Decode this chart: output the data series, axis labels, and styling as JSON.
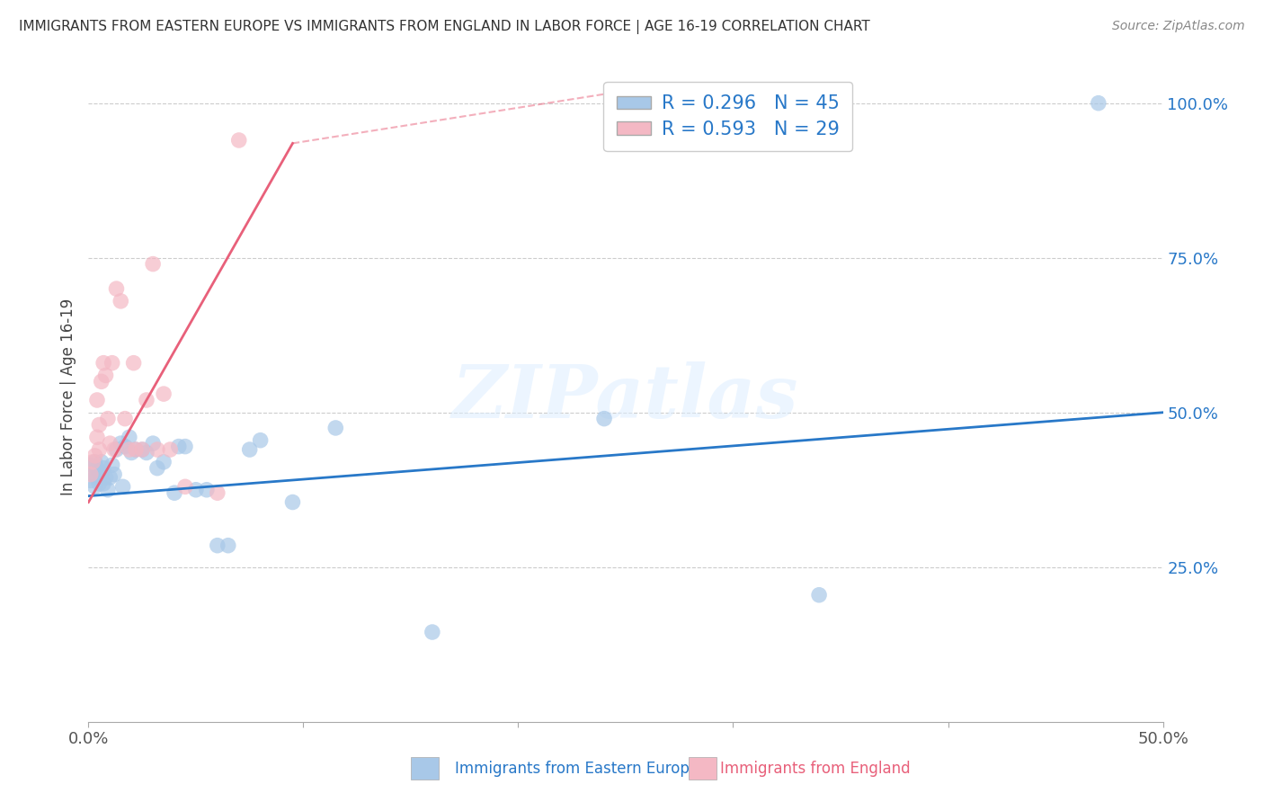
{
  "title": "IMMIGRANTS FROM EASTERN EUROPE VS IMMIGRANTS FROM ENGLAND IN LABOR FORCE | AGE 16-19 CORRELATION CHART",
  "source": "Source: ZipAtlas.com",
  "ylabel": "In Labor Force | Age 16-19",
  "xlim": [
    0.0,
    0.5
  ],
  "ylim": [
    0.0,
    1.05
  ],
  "xticks": [
    0.0,
    0.1,
    0.2,
    0.3,
    0.4,
    0.5
  ],
  "xticklabels": [
    "0.0%",
    "",
    "",
    "",
    "",
    "50.0%"
  ],
  "yticks_right": [
    0.25,
    0.5,
    0.75,
    1.0
  ],
  "yticklabels_right": [
    "25.0%",
    "50.0%",
    "75.0%",
    "100.0%"
  ],
  "r_blue": 0.296,
  "n_blue": 45,
  "r_pink": 0.593,
  "n_pink": 29,
  "blue_color": "#a8c8e8",
  "pink_color": "#f4b8c4",
  "blue_line_color": "#2878c8",
  "pink_line_color": "#e8607a",
  "legend_label_blue": "Immigrants from Eastern Europe",
  "legend_label_pink": "Immigrants from England",
  "watermark": "ZIPatlas",
  "blue_x": [
    0.001,
    0.001,
    0.002,
    0.003,
    0.003,
    0.004,
    0.004,
    0.005,
    0.005,
    0.006,
    0.006,
    0.007,
    0.007,
    0.008,
    0.009,
    0.01,
    0.011,
    0.012,
    0.013,
    0.015,
    0.016,
    0.017,
    0.019,
    0.02,
    0.022,
    0.025,
    0.027,
    0.03,
    0.032,
    0.035,
    0.04,
    0.042,
    0.045,
    0.05,
    0.055,
    0.06,
    0.065,
    0.075,
    0.08,
    0.095,
    0.115,
    0.16,
    0.24,
    0.34,
    0.47
  ],
  "blue_y": [
    0.39,
    0.415,
    0.4,
    0.42,
    0.38,
    0.395,
    0.41,
    0.385,
    0.405,
    0.4,
    0.42,
    0.385,
    0.41,
    0.395,
    0.375,
    0.395,
    0.415,
    0.4,
    0.44,
    0.45,
    0.38,
    0.445,
    0.46,
    0.435,
    0.44,
    0.44,
    0.435,
    0.45,
    0.41,
    0.42,
    0.37,
    0.445,
    0.445,
    0.375,
    0.375,
    0.285,
    0.285,
    0.44,
    0.455,
    0.355,
    0.475,
    0.145,
    0.49,
    0.205,
    1.0
  ],
  "pink_x": [
    0.001,
    0.002,
    0.003,
    0.004,
    0.004,
    0.005,
    0.005,
    0.006,
    0.007,
    0.008,
    0.009,
    0.01,
    0.011,
    0.012,
    0.013,
    0.015,
    0.017,
    0.019,
    0.021,
    0.022,
    0.025,
    0.027,
    0.03,
    0.032,
    0.035,
    0.038,
    0.045,
    0.06,
    0.07
  ],
  "pink_y": [
    0.4,
    0.42,
    0.43,
    0.52,
    0.46,
    0.44,
    0.48,
    0.55,
    0.58,
    0.56,
    0.49,
    0.45,
    0.58,
    0.44,
    0.7,
    0.68,
    0.49,
    0.44,
    0.58,
    0.44,
    0.44,
    0.52,
    0.74,
    0.44,
    0.53,
    0.44,
    0.38,
    0.37,
    0.94
  ],
  "blue_trend": [
    0.0,
    0.5,
    0.365,
    0.5
  ],
  "pink_trend": [
    0.0,
    0.095,
    0.355,
    0.935
  ]
}
